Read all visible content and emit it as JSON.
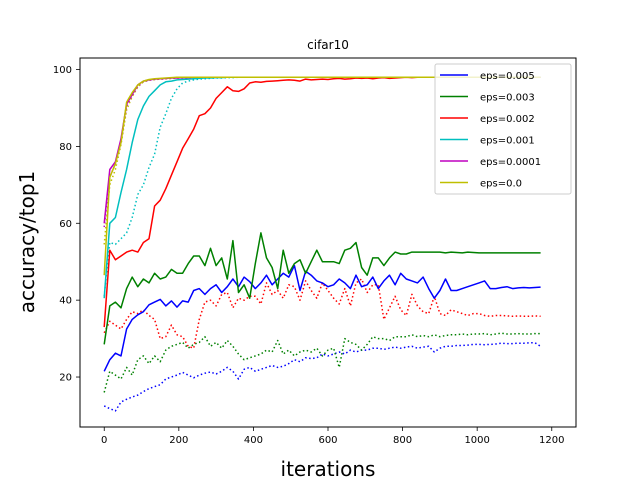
{
  "chart_data": {
    "type": "line",
    "title": "cifar10",
    "xlabel": "iterations",
    "ylabel": "accuracy/top1",
    "xlim": [
      -65,
      1265
    ],
    "ylim": [
      7,
      103
    ],
    "xticks": [
      0,
      200,
      400,
      600,
      800,
      1000,
      1200
    ],
    "yticks": [
      20,
      40,
      60,
      80,
      100
    ],
    "legend_position": "top-right",
    "x": [
      0,
      15,
      30,
      45,
      60,
      75,
      90,
      105,
      120,
      135,
      150,
      165,
      180,
      195,
      210,
      225,
      240,
      255,
      270,
      285,
      300,
      315,
      330,
      345,
      360,
      375,
      390,
      405,
      420,
      435,
      450,
      465,
      480,
      495,
      510,
      525,
      540,
      555,
      570,
      585,
      600,
      615,
      630,
      645,
      660,
      675,
      690,
      705,
      720,
      735,
      750,
      765,
      780,
      795,
      810,
      825,
      840,
      855,
      870,
      885,
      900,
      915,
      930,
      945,
      960,
      975,
      990,
      1005,
      1020,
      1035,
      1050,
      1065,
      1080,
      1095,
      1110,
      1125,
      1140,
      1155,
      1170
    ],
    "series": [
      {
        "name": "eps=0.005",
        "color": "#0000ff",
        "style": "solid",
        "values": [
          21.5,
          24.5,
          26.2,
          25.5,
          32.5,
          35.0,
          36.2,
          37.0,
          38.8,
          39.5,
          40.2,
          38.5,
          39.8,
          38.2,
          39.8,
          39.5,
          42.5,
          43.0,
          41.5,
          43.0,
          44.0,
          42.0,
          43.5,
          45.5,
          43.5,
          46.0,
          44.8,
          43.0,
          44.5,
          46.5,
          44.0,
          45.5,
          47.0,
          46.0,
          49.0,
          42.5,
          47.5,
          46.5,
          45.0,
          44.5,
          43.5,
          44.0,
          45.5,
          44.5,
          43.0,
          46.5,
          43.5,
          44.0,
          46.0,
          43.0,
          45.0,
          46.5,
          44.0,
          47.0,
          45.5,
          45.0,
          44.5,
          46.0,
          43.0,
          40.5,
          42.5,
          45.5,
          42.5,
          42.5,
          43.0,
          43.5,
          44.0,
          44.5,
          45.0,
          43.0,
          43.0,
          43.3,
          43.5,
          43.0,
          43.2,
          43.3,
          43.2,
          43.3,
          43.4
        ]
      },
      {
        "name": "eps=0.003",
        "color": "#008000",
        "style": "solid",
        "values": [
          28.5,
          38.5,
          39.5,
          38.0,
          43.0,
          46.0,
          43.5,
          45.5,
          44.5,
          47.0,
          45.5,
          46.0,
          48.0,
          47.0,
          47.0,
          49.5,
          51.5,
          51.5,
          49.0,
          53.5,
          49.0,
          51.0,
          45.5,
          55.5,
          42.0,
          44.0,
          40.5,
          49.5,
          57.5,
          51.0,
          48.5,
          43.0,
          53.0,
          47.0,
          49.5,
          50.5,
          47.0,
          50.0,
          53.0,
          50.0,
          50.0,
          50.0,
          49.5,
          53.0,
          53.5,
          55.0,
          48.5,
          46.5,
          51.0,
          51.0,
          49.0,
          51.0,
          52.5,
          52.0,
          52.0,
          52.5,
          52.5,
          52.5,
          52.5,
          52.5,
          52.5,
          52.3,
          52.5,
          52.4,
          52.3,
          52.5,
          52.4,
          52.3,
          52.3,
          52.3,
          52.3,
          52.3,
          52.3,
          52.3,
          52.3,
          52.3,
          52.3,
          52.3,
          52.3
        ]
      },
      {
        "name": "eps=0.002",
        "color": "#ff0000",
        "style": "solid",
        "values": [
          33.0,
          53.0,
          50.5,
          51.5,
          52.5,
          53.0,
          52.5,
          55.0,
          56.0,
          64.5,
          66.0,
          69.0,
          72.5,
          76.0,
          79.5,
          82.0,
          84.5,
          88.0,
          88.5,
          90.0,
          92.5,
          94.0,
          95.5,
          94.5,
          94.3,
          95.0,
          96.5,
          96.8,
          96.7,
          96.9,
          97.0,
          97.1,
          97.2,
          97.3,
          97.2,
          97.0,
          97.5,
          97.3,
          97.4,
          97.5,
          97.4,
          97.6,
          97.7,
          97.5,
          97.6,
          97.8,
          97.7,
          97.8,
          97.6,
          97.8,
          97.9,
          97.7,
          97.8,
          97.9,
          98.0,
          97.9,
          98.0,
          98.0,
          98.0,
          98.0,
          98.0,
          98.0,
          98.0,
          98.0,
          98.0,
          98.0,
          98.0,
          98.0,
          98.0,
          98.0,
          98.0,
          98.0,
          98.0,
          98.0,
          98.0,
          98.0,
          98.0,
          98.0,
          98.0
        ]
      },
      {
        "name": "eps=0.001",
        "color": "#00bfbf",
        "style": "solid",
        "values": [
          40.5,
          60.0,
          61.5,
          68.0,
          74.0,
          81.0,
          87.0,
          90.5,
          93.0,
          94.5,
          96.0,
          96.8,
          97.0,
          97.3,
          97.4,
          97.5,
          97.6,
          97.7,
          97.8,
          97.8,
          97.9,
          97.9,
          98.0,
          98.0,
          98.0,
          98.0,
          98.0,
          98.0,
          98.0,
          98.0,
          98.0,
          98.0,
          98.0,
          98.0,
          98.0,
          98.0,
          98.0,
          98.0,
          98.0,
          98.0,
          98.0,
          98.0,
          98.0,
          98.0,
          98.0,
          98.0,
          98.0,
          98.0,
          98.0,
          98.0,
          98.0,
          98.0,
          98.0,
          98.0,
          98.0,
          98.0,
          98.0,
          98.0,
          98.0,
          98.0,
          98.0,
          98.0,
          98.0,
          98.0,
          98.0,
          98.0,
          98.0,
          98.0,
          98.0,
          98.0,
          98.0,
          98.0,
          98.0,
          98.0,
          98.0,
          98.0,
          98.0,
          98.0,
          98.0
        ]
      },
      {
        "name": "eps=0.0001",
        "color": "#bf00bf",
        "style": "solid",
        "values": [
          60.0,
          74.0,
          76.0,
          82.0,
          91.0,
          93.5,
          96.0,
          97.0,
          97.3,
          97.5,
          97.6,
          97.7,
          97.8,
          97.8,
          97.9,
          97.9,
          98.0,
          98.0,
          98.0,
          98.0,
          98.0,
          98.0,
          98.0,
          98.0,
          98.0,
          98.0,
          98.0,
          98.0,
          98.0,
          98.0,
          98.0,
          98.0,
          98.0,
          98.0,
          98.0,
          98.0,
          98.0,
          98.0,
          98.0,
          98.0,
          98.0,
          98.0,
          98.0,
          98.0,
          98.0,
          98.0,
          98.0,
          98.0,
          98.0,
          98.0,
          98.0,
          98.0,
          98.0,
          98.0,
          98.0,
          98.0,
          98.0,
          98.0,
          98.0,
          98.0,
          98.0,
          98.0,
          98.0,
          98.0,
          98.0,
          98.0,
          98.0,
          98.0,
          98.0,
          98.0,
          98.0,
          98.0,
          98.0,
          98.0,
          98.0,
          98.0,
          98.0,
          98.0,
          98.0
        ]
      },
      {
        "name": "eps=0.0",
        "color": "#bfbf00",
        "style": "solid",
        "values": [
          46.5,
          72.0,
          75.5,
          81.0,
          91.5,
          94.0,
          96.0,
          97.0,
          97.4,
          97.6,
          97.7,
          97.8,
          97.9,
          98.0,
          98.0,
          98.0,
          98.0,
          98.0,
          98.0,
          98.0,
          98.0,
          98.0,
          98.0,
          98.0,
          98.0,
          98.0,
          98.0,
          98.0,
          98.0,
          98.0,
          98.0,
          98.0,
          98.0,
          98.0,
          98.0,
          98.0,
          98.0,
          98.0,
          98.0,
          98.0,
          98.0,
          98.0,
          98.0,
          98.0,
          98.0,
          98.0,
          98.0,
          98.0,
          98.0,
          98.0,
          98.0,
          98.0,
          98.0,
          98.0,
          98.0,
          98.0,
          98.0,
          98.0,
          98.0,
          98.0,
          98.0,
          98.0,
          98.0,
          98.0,
          98.0,
          98.0,
          98.0,
          98.0,
          98.0,
          98.0,
          98.0,
          98.0,
          98.0,
          98.0,
          98.0,
          98.0,
          98.0,
          98.0,
          98.0
        ]
      },
      {
        "color": "#0000ff",
        "style": "dotted",
        "values": [
          12.5,
          11.8,
          11.2,
          13.5,
          14.2,
          14.8,
          15.3,
          16.2,
          17.0,
          17.5,
          18.0,
          19.5,
          20.0,
          20.5,
          21.2,
          20.5,
          19.8,
          20.5,
          21.0,
          21.3,
          20.8,
          21.5,
          22.5,
          21.5,
          19.5,
          22.0,
          22.5,
          21.5,
          22.0,
          22.5,
          23.0,
          22.5,
          22.8,
          23.5,
          24.5,
          24.0,
          25.0,
          24.8,
          25.0,
          26.0,
          25.5,
          26.0,
          26.5,
          26.0,
          27.0,
          26.5,
          27.0,
          27.0,
          27.5,
          27.5,
          27.2,
          27.5,
          27.8,
          27.5,
          27.8,
          28.0,
          27.5,
          27.8,
          28.0,
          26.5,
          27.5,
          28.0,
          28.0,
          28.2,
          28.2,
          28.3,
          28.5,
          28.5,
          28.4,
          28.5,
          28.6,
          28.8,
          28.7,
          28.7,
          28.8,
          28.8,
          28.9,
          28.9,
          28.0
        ]
      },
      {
        "color": "#008000",
        "style": "dotted",
        "values": [
          16.0,
          21.5,
          20.5,
          19.5,
          22.5,
          20.5,
          24.5,
          25.5,
          23.5,
          25.5,
          24.0,
          27.0,
          28.0,
          28.5,
          29.0,
          27.5,
          28.5,
          29.0,
          30.5,
          28.0,
          29.0,
          27.5,
          29.5,
          28.0,
          26.0,
          24.5,
          25.0,
          25.5,
          26.0,
          27.0,
          26.5,
          29.5,
          26.0,
          27.0,
          25.5,
          26.5,
          27.0,
          26.5,
          27.5,
          25.5,
          27.0,
          27.5,
          22.5,
          30.0,
          29.0,
          28.5,
          27.0,
          28.5,
          30.5,
          30.0,
          30.0,
          29.5,
          30.5,
          30.5,
          30.5,
          31.0,
          30.5,
          30.8,
          30.5,
          31.0,
          30.5,
          30.8,
          31.0,
          31.0,
          31.2,
          31.0,
          31.2,
          31.2,
          31.3,
          31.0,
          31.2,
          31.4,
          31.2,
          31.2,
          31.3,
          31.2,
          31.2,
          31.3,
          31.3
        ]
      },
      {
        "color": "#ff0000",
        "style": "dotted",
        "values": [
          31.5,
          34.5,
          33.5,
          32.5,
          35.0,
          37.0,
          36.5,
          37.5,
          36.0,
          35.0,
          30.0,
          30.5,
          33.5,
          31.0,
          30.5,
          28.0,
          27.5,
          35.0,
          39.5,
          40.0,
          38.5,
          41.5,
          42.0,
          38.0,
          40.5,
          40.0,
          41.0,
          41.0,
          39.0,
          44.5,
          41.5,
          42.5,
          40.5,
          44.0,
          43.5,
          40.0,
          45.0,
          42.5,
          40.5,
          44.5,
          42.5,
          40.5,
          39.0,
          43.0,
          38.5,
          44.5,
          45.5,
          42.0,
          44.0,
          44.0,
          35.0,
          38.0,
          41.0,
          37.5,
          36.0,
          41.5,
          38.5,
          37.0,
          36.5,
          41.0,
          36.5,
          36.0,
          37.5,
          37.0,
          36.5,
          36.0,
          36.5,
          36.5,
          36.0,
          35.8,
          36.0,
          36.0,
          35.9,
          35.8,
          35.9,
          35.8,
          35.8,
          35.9,
          35.8
        ]
      },
      {
        "color": "#00bfbf",
        "style": "dotted",
        "values": [
          41.0,
          55.0,
          54.5,
          56.0,
          57.5,
          61.5,
          67.5,
          70.0,
          74.5,
          78.0,
          85.0,
          88.5,
          92.5,
          95.0,
          96.5,
          97.0,
          97.3,
          97.5,
          97.6,
          97.7,
          97.8,
          97.8,
          97.9,
          97.9,
          98.0,
          98.0,
          98.0,
          98.0,
          98.0,
          98.0,
          98.0,
          98.0,
          98.0,
          98.0,
          98.0,
          98.0,
          98.0,
          98.0,
          98.0,
          98.0,
          98.0,
          98.0,
          98.0,
          98.0,
          98.0,
          98.0,
          98.0,
          98.0,
          98.0,
          98.0,
          98.0,
          98.0,
          98.0,
          98.0,
          98.0,
          98.0,
          98.0,
          98.0,
          98.0,
          98.0,
          98.0,
          98.0,
          98.0,
          98.0,
          98.0,
          98.0,
          98.0,
          98.0,
          98.0,
          98.0,
          98.0,
          98.0,
          98.0,
          98.0,
          98.0,
          98.0,
          98.0,
          98.0,
          98.0
        ]
      },
      {
        "color": "#bf00bf",
        "style": "dotted",
        "values": [
          59.0,
          72.0,
          75.5,
          81.0,
          90.5,
          93.0,
          95.5,
          96.8,
          97.2,
          97.4,
          97.5,
          97.6,
          97.7,
          97.8,
          97.8,
          97.9,
          97.9,
          98.0,
          98.0,
          98.0,
          98.0,
          98.0,
          98.0,
          98.0,
          98.0,
          98.0,
          98.0,
          98.0,
          98.0,
          98.0,
          98.0,
          98.0,
          98.0,
          98.0,
          98.0,
          98.0,
          98.0,
          98.0,
          98.0,
          98.0,
          98.0,
          98.0,
          98.0,
          98.0,
          98.0,
          98.0,
          98.0,
          98.0,
          98.0,
          98.0,
          98.0,
          98.0,
          98.0,
          98.0,
          98.0,
          98.0,
          98.0,
          98.0,
          98.0,
          98.0,
          98.0,
          98.0,
          98.0,
          98.0,
          98.0,
          98.0,
          98.0,
          98.0,
          98.0,
          98.0,
          98.0,
          98.0,
          98.0,
          98.0,
          98.0,
          98.0,
          98.0,
          98.0,
          98.0
        ]
      },
      {
        "color": "#bfbf00",
        "style": "dotted",
        "values": [
          54.5,
          70.0,
          74.0,
          80.5,
          89.5,
          93.0,
          95.5,
          96.8,
          97.2,
          97.4,
          97.5,
          97.6,
          97.7,
          97.8,
          97.8,
          97.9,
          97.9,
          98.0,
          98.0,
          98.0,
          98.0,
          98.0,
          98.0,
          98.0,
          98.0,
          98.0,
          98.0,
          98.0,
          98.0,
          98.0,
          98.0,
          98.0,
          98.0,
          98.0,
          98.0,
          98.0,
          98.0,
          98.0,
          98.0,
          98.0,
          98.0,
          98.0,
          98.0,
          98.0,
          98.0,
          98.0,
          98.0,
          98.0,
          98.0,
          98.0,
          98.0,
          98.0,
          98.0,
          98.0,
          98.0,
          98.0,
          98.0,
          98.0,
          98.0,
          98.0,
          98.0,
          98.0,
          98.0,
          98.0,
          98.0,
          98.0,
          98.0,
          98.0,
          98.0,
          98.0,
          98.0,
          98.0,
          98.0,
          98.0,
          98.0,
          98.0,
          98.0,
          98.0,
          98.0
        ]
      }
    ]
  }
}
